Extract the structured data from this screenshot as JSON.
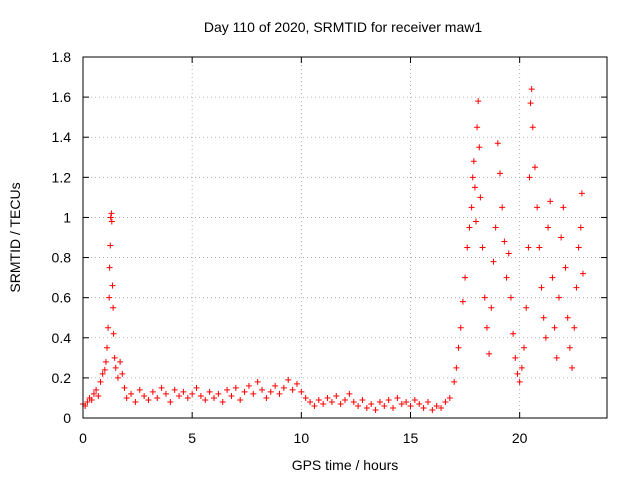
{
  "chart_data": {
    "type": "scatter",
    "title": "Day 110 of 2020, SRMTID for receiver maw1",
    "xlabel": "GPS time / hours",
    "ylabel": "SRMTID / TECUs",
    "xlim": [
      0,
      24
    ],
    "ylim": [
      0,
      1.8
    ],
    "xticks": [
      0,
      5,
      10,
      15,
      20
    ],
    "xtick_labels": [
      "0",
      "5",
      "10",
      "15",
      "20"
    ],
    "yticks": [
      0,
      0.2,
      0.4,
      0.6,
      0.8,
      1.0,
      1.2,
      1.4,
      1.6,
      1.8
    ],
    "ytick_labels": [
      "0",
      "0.2",
      "0.4",
      "0.6",
      "0.8",
      "1",
      "1.2",
      "1.4",
      "1.6",
      "1.8"
    ],
    "grid": true,
    "marker": "+",
    "color": "#ff0000",
    "series": [
      {
        "name": "maw1",
        "x": [
          0.0,
          0.1,
          0.2,
          0.3,
          0.4,
          0.5,
          0.6,
          0.7,
          0.8,
          0.9,
          1.0,
          1.05,
          1.1,
          1.15,
          1.2,
          1.22,
          1.25,
          1.27,
          1.3,
          1.32,
          1.35,
          1.38,
          1.4,
          1.45,
          1.5,
          1.6,
          1.7,
          1.8,
          1.9,
          2.0,
          2.2,
          2.4,
          2.6,
          2.8,
          3.0,
          3.2,
          3.4,
          3.6,
          3.8,
          4.0,
          4.2,
          4.4,
          4.6,
          4.8,
          5.0,
          5.2,
          5.4,
          5.6,
          5.8,
          6.0,
          6.2,
          6.4,
          6.6,
          6.8,
          7.0,
          7.2,
          7.4,
          7.6,
          7.8,
          8.0,
          8.2,
          8.4,
          8.6,
          8.8,
          9.0,
          9.2,
          9.4,
          9.6,
          9.8,
          10.0,
          10.2,
          10.4,
          10.6,
          10.8,
          11.0,
          11.2,
          11.4,
          11.6,
          11.8,
          12.0,
          12.2,
          12.4,
          12.6,
          12.8,
          13.0,
          13.2,
          13.4,
          13.6,
          13.8,
          14.0,
          14.2,
          14.4,
          14.6,
          14.8,
          15.0,
          15.2,
          15.4,
          15.6,
          15.8,
          16.0,
          16.2,
          16.4,
          16.6,
          16.8,
          17.0,
          17.1,
          17.2,
          17.3,
          17.4,
          17.5,
          17.6,
          17.7,
          17.8,
          17.85,
          17.9,
          17.95,
          18.0,
          18.05,
          18.1,
          18.15,
          18.2,
          18.3,
          18.4,
          18.5,
          18.6,
          18.7,
          18.8,
          18.9,
          19.0,
          19.1,
          19.2,
          19.3,
          19.4,
          19.5,
          19.6,
          19.7,
          19.8,
          19.9,
          20.0,
          20.1,
          20.2,
          20.3,
          20.4,
          20.45,
          20.5,
          20.55,
          20.6,
          20.7,
          20.8,
          20.9,
          21.0,
          21.1,
          21.2,
          21.3,
          21.4,
          21.5,
          21.6,
          21.7,
          21.8,
          21.9,
          22.0,
          22.1,
          22.2,
          22.3,
          22.4,
          22.5,
          22.6,
          22.7,
          22.8,
          22.85,
          22.9
        ],
        "y": [
          0.07,
          0.06,
          0.08,
          0.1,
          0.09,
          0.12,
          0.14,
          0.11,
          0.18,
          0.22,
          0.24,
          0.28,
          0.35,
          0.45,
          0.6,
          0.75,
          0.86,
          1.0,
          1.02,
          0.98,
          0.66,
          0.55,
          0.42,
          0.3,
          0.25,
          0.2,
          0.28,
          0.22,
          0.15,
          0.1,
          0.12,
          0.08,
          0.14,
          0.11,
          0.09,
          0.13,
          0.1,
          0.15,
          0.12,
          0.08,
          0.14,
          0.11,
          0.13,
          0.1,
          0.12,
          0.15,
          0.11,
          0.09,
          0.13,
          0.1,
          0.12,
          0.08,
          0.14,
          0.11,
          0.15,
          0.09,
          0.13,
          0.16,
          0.12,
          0.18,
          0.14,
          0.1,
          0.13,
          0.16,
          0.12,
          0.15,
          0.19,
          0.14,
          0.17,
          0.13,
          0.1,
          0.08,
          0.06,
          0.09,
          0.07,
          0.1,
          0.08,
          0.11,
          0.07,
          0.09,
          0.12,
          0.08,
          0.06,
          0.09,
          0.05,
          0.07,
          0.04,
          0.08,
          0.06,
          0.09,
          0.05,
          0.1,
          0.07,
          0.08,
          0.06,
          0.09,
          0.07,
          0.05,
          0.08,
          0.04,
          0.06,
          0.05,
          0.08,
          0.1,
          0.18,
          0.25,
          0.35,
          0.45,
          0.58,
          0.7,
          0.85,
          0.95,
          1.05,
          1.2,
          1.28,
          1.15,
          0.98,
          1.45,
          1.58,
          1.35,
          1.1,
          0.85,
          0.6,
          0.45,
          0.32,
          0.55,
          0.78,
          0.95,
          1.37,
          1.22,
          1.05,
          0.88,
          0.7,
          0.82,
          0.6,
          0.42,
          0.3,
          0.22,
          0.18,
          0.25,
          0.35,
          0.55,
          0.85,
          1.2,
          1.57,
          1.64,
          1.45,
          1.25,
          1.05,
          0.85,
          0.65,
          0.5,
          0.4,
          0.95,
          1.08,
          0.7,
          0.45,
          0.3,
          0.6,
          0.9,
          1.05,
          0.75,
          0.5,
          0.35,
          0.25,
          0.45,
          0.65,
          0.85,
          0.95,
          1.12,
          0.72
        ]
      }
    ]
  }
}
